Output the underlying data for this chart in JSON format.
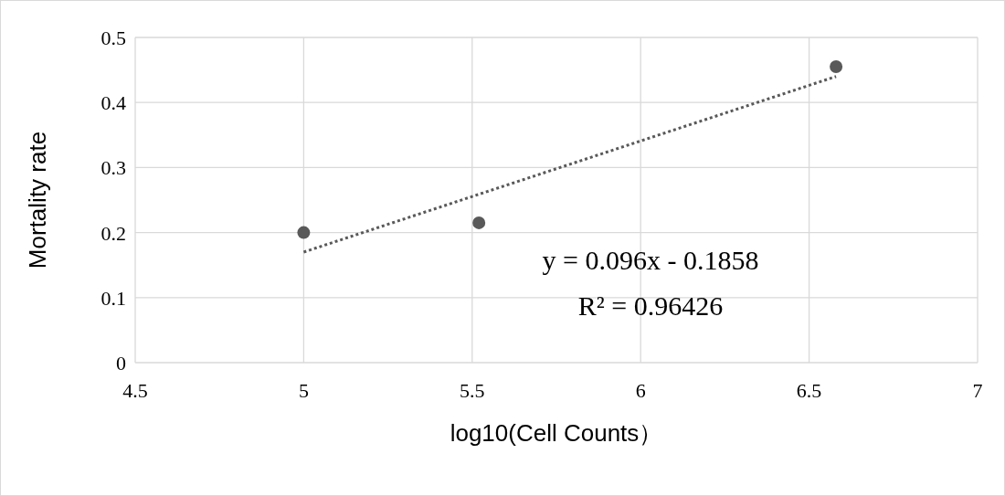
{
  "chart_data": {
    "type": "scatter",
    "xlabel": "log10(Cell Counts）",
    "ylabel": "Mortality rate",
    "annotations": [
      "y = 0.096x - 0.1858",
      "R² = 0.96426"
    ],
    "xlim": [
      4.5,
      7
    ],
    "xticks": [
      4.5,
      5,
      5.5,
      6,
      6.5,
      7
    ],
    "ylim": [
      0,
      0.5
    ],
    "yticks": [
      0,
      0.1,
      0.2,
      0.3,
      0.4,
      0.5
    ],
    "grid": true,
    "series": [
      {
        "x": [
          5,
          5.52,
          6.58
        ],
        "values": [
          0.2,
          0.215,
          0.455
        ],
        "color": "#595959",
        "marker": "circle"
      },
      {
        "type": "line",
        "x": [
          5,
          6.58
        ],
        "values": [
          0.17,
          0.44
        ],
        "color": "#595959",
        "line_style": "dotted"
      }
    ]
  }
}
